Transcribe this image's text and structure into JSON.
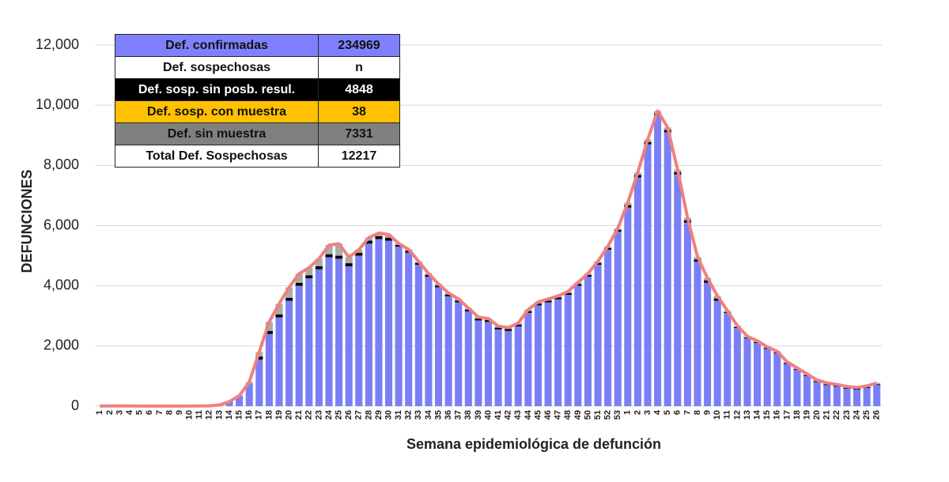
{
  "chart_data": {
    "type": "bar",
    "stacked": true,
    "y_label": "DEFUNCIONES",
    "x_label": "Semana epidemiológica de defunción",
    "categories": [
      "1",
      "2",
      "3",
      "4",
      "5",
      "6",
      "7",
      "8",
      "9",
      "10",
      "11",
      "12",
      "13",
      "14",
      "15",
      "16",
      "17",
      "18",
      "19",
      "20",
      "21",
      "22",
      "23",
      "24",
      "25",
      "26",
      "27",
      "28",
      "29",
      "30",
      "31",
      "32",
      "33",
      "34",
      "35",
      "36",
      "37",
      "38",
      "39",
      "40",
      "41",
      "42",
      "43",
      "44",
      "45",
      "46",
      "47",
      "48",
      "49",
      "50",
      "51",
      "52",
      "53",
      "1",
      "2",
      "3",
      "4",
      "5",
      "6",
      "7",
      "8",
      "9",
      "10",
      "11",
      "12",
      "13",
      "14",
      "15",
      "16",
      "17",
      "18",
      "19",
      "20",
      "21",
      "22",
      "23",
      "24",
      "25",
      "26"
    ],
    "series": [
      {
        "color": "#7b7ff5",
        "values": [
          2,
          5,
          10,
          5,
          3,
          3,
          3,
          3,
          3,
          3,
          5,
          10,
          40,
          150,
          350,
          750,
          1550,
          2400,
          2950,
          3500,
          4000,
          4250,
          4550,
          4950,
          4900,
          4650,
          5000,
          5400,
          5550,
          5500,
          5300,
          5100,
          4700,
          4300,
          3950,
          3650,
          3450,
          3150,
          2850,
          2800,
          2550,
          2500,
          2650,
          3100,
          3350,
          3450,
          3550,
          3700,
          4000,
          4300,
          4700,
          5200,
          5800,
          6600,
          7600,
          8700,
          9650,
          9100,
          7700,
          6100,
          4800,
          4100,
          3500,
          3100,
          2600,
          2250,
          2100,
          1900,
          1750,
          1400,
          1200,
          1000,
          800,
          700,
          650,
          580,
          550,
          600,
          700
        ]
      },
      {
        "color": "#000000",
        "values": [
          0,
          0,
          0,
          0,
          0,
          0,
          0,
          0,
          0,
          0,
          0,
          0,
          0,
          0,
          0,
          0,
          100,
          100,
          100,
          100,
          100,
          100,
          100,
          100,
          100,
          100,
          100,
          100,
          100,
          100,
          60,
          60,
          60,
          60,
          60,
          60,
          60,
          60,
          60,
          60,
          60,
          60,
          60,
          60,
          60,
          60,
          60,
          60,
          60,
          60,
          60,
          60,
          60,
          80,
          80,
          80,
          80,
          80,
          80,
          80,
          80,
          80,
          80,
          30,
          30,
          30,
          30,
          30,
          30,
          30,
          30,
          30,
          30,
          30,
          30,
          30,
          30,
          30,
          30
        ]
      },
      {
        "color": "#ffc000",
        "values": [
          0,
          0,
          0,
          0,
          0,
          0,
          0,
          0,
          0,
          0,
          0,
          0,
          0,
          0,
          0,
          0,
          1,
          1,
          1,
          1,
          1,
          1,
          1,
          1,
          1,
          1,
          1,
          1,
          1,
          1,
          1,
          1,
          1,
          1,
          1,
          1,
          1,
          1,
          1,
          1,
          0,
          0,
          0,
          0,
          0,
          0,
          0,
          0,
          0,
          0,
          0,
          0,
          0,
          0,
          0,
          0,
          0,
          0,
          0,
          0,
          0,
          0,
          0,
          0,
          0,
          0,
          0,
          0,
          0,
          0,
          0,
          0,
          0,
          0,
          0,
          0,
          0,
          0,
          0
        ]
      },
      {
        "color": "#a9aea9",
        "values": [
          0,
          0,
          0,
          0,
          0,
          0,
          0,
          0,
          0,
          0,
          0,
          0,
          0,
          0,
          0,
          50,
          150,
          300,
          350,
          350,
          300,
          250,
          250,
          300,
          400,
          200,
          100,
          100,
          100,
          100,
          50,
          50,
          50,
          50,
          50,
          50,
          50,
          50,
          50,
          50,
          50,
          50,
          50,
          50,
          50,
          50,
          50,
          50,
          50,
          50,
          50,
          50,
          50,
          80,
          80,
          80,
          80,
          80,
          80,
          80,
          80,
          80,
          80,
          40,
          40,
          40,
          40,
          40,
          40,
          40,
          40,
          40,
          40,
          40,
          40,
          40,
          40,
          40,
          40
        ]
      },
      {
        "type": "line",
        "color": "#f08080",
        "values": [
          2,
          5,
          10,
          5,
          3,
          3,
          3,
          3,
          3,
          3,
          5,
          10,
          40,
          150,
          350,
          800,
          1800,
          2800,
          3400,
          3950,
          4400,
          4600,
          4900,
          5350,
          5400,
          4950,
          5200,
          5600,
          5750,
          5700,
          5410,
          5210,
          4810,
          4410,
          4060,
          3760,
          3560,
          3260,
          2960,
          2910,
          2660,
          2610,
          2760,
          3210,
          3460,
          3560,
          3660,
          3810,
          4110,
          4410,
          4810,
          5310,
          5910,
          6760,
          7760,
          8860,
          9810,
          9260,
          7860,
          6260,
          4960,
          4260,
          3660,
          3170,
          2670,
          2320,
          2170,
          1970,
          1820,
          1470,
          1270,
          1070,
          870,
          770,
          720,
          650,
          620,
          670,
          770
        ]
      }
    ],
    "ylim": [
      0,
      12000
    ],
    "yticks": [
      {
        "value": 0,
        "label": "0"
      },
      {
        "value": 2000,
        "label": "2,000"
      },
      {
        "value": 4000,
        "label": "4,000"
      },
      {
        "value": 6000,
        "label": "6,000"
      },
      {
        "value": 8000,
        "label": "8,000"
      },
      {
        "value": 10000,
        "label": "10,000"
      },
      {
        "value": 12000,
        "label": "12,000"
      }
    ],
    "grid": true,
    "legend_table": {
      "rows": [
        [
          "Def. confirmadas",
          234969
        ],
        [
          "Def. sospechosas",
          "n"
        ],
        [
          "Def. sosp. sin posb. resul.",
          4848
        ],
        [
          "Def. sosp. con  muestra",
          38
        ],
        [
          "Def. sin muestra",
          7331
        ],
        [
          "Total Def. Sospechosas",
          12217
        ]
      ],
      "row_colors": [
        "#8080ff",
        "#ffffff",
        "#000000",
        "#ffc000",
        "#808080",
        "#ffffff"
      ],
      "text_colors": [
        "#111111",
        "#111111",
        "#ffffff",
        "#111111",
        "#111111",
        "#111111"
      ]
    }
  }
}
